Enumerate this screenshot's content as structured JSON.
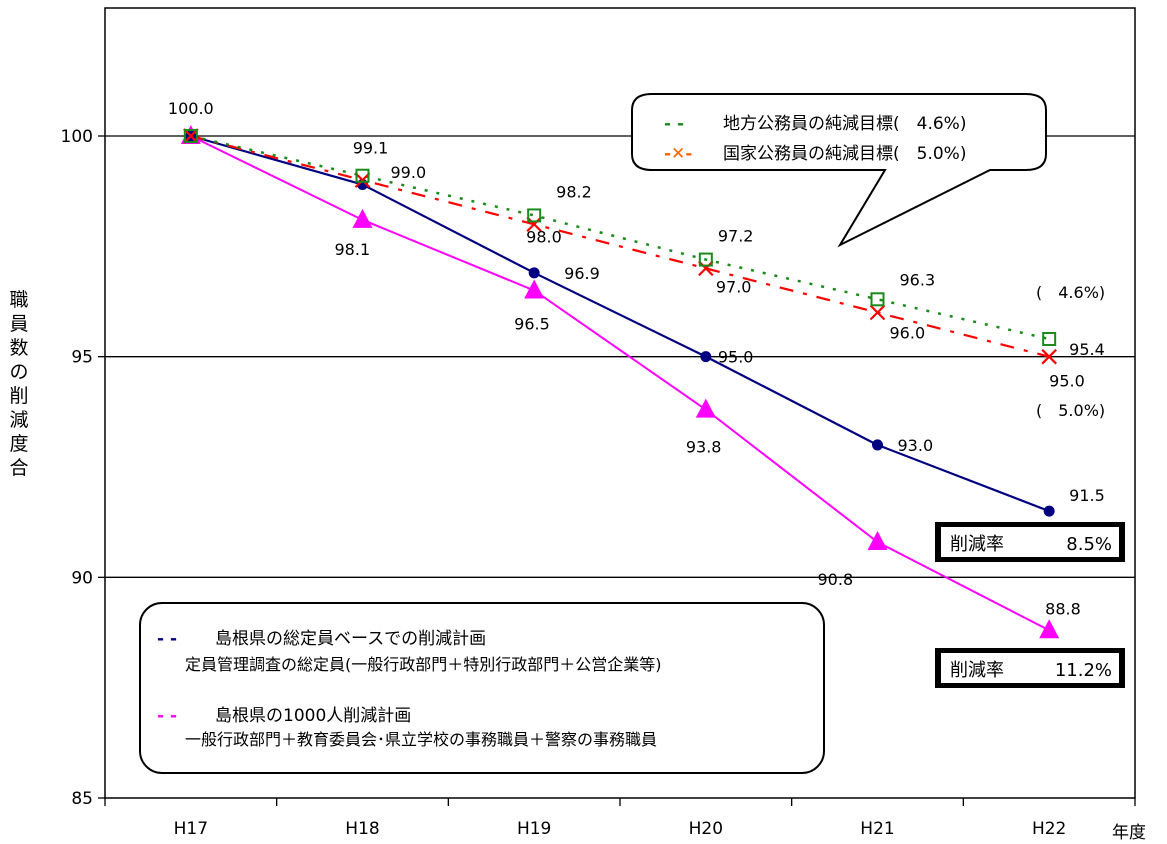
{
  "chart_data": {
    "type": "line",
    "ylabel": "職員数の削減度合",
    "xunit": "年度",
    "categories": [
      "H17",
      "H18",
      "H19",
      "H20",
      "H21",
      "H22"
    ],
    "ylim": [
      85,
      100
    ],
    "yticks": [
      "85",
      "90",
      "95",
      "100"
    ],
    "series": [
      {
        "id": "local",
        "legend": "地方公務員の純減目標(　4.6%)",
        "color": "#1a8a1a",
        "values": [
          100.0,
          99.1,
          98.2,
          97.2,
          96.3,
          95.4
        ],
        "labels": [
          "100.0",
          "99.1",
          "98.2",
          "97.2",
          "96.3",
          "95.4"
        ]
      },
      {
        "id": "national",
        "legend": "国家公務員の純減目標(　5.0%)",
        "color": "#ff0000",
        "values": [
          100.0,
          99.0,
          98.0,
          97.0,
          96.0,
          95.0
        ],
        "labels": [
          "",
          "99.0",
          "98.0",
          "97.0",
          "96.0",
          "95.0"
        ]
      },
      {
        "id": "total",
        "legend": "島根県の総定員ベースでの削減計画",
        "color": "#000080",
        "values": [
          100.0,
          98.9,
          96.9,
          95.0,
          93.0,
          91.5
        ],
        "labels": [
          "",
          "",
          "96.9",
          "95.0",
          "93.0",
          "91.5"
        ]
      },
      {
        "id": "plan1000",
        "legend": "島根県の1000人削減計画",
        "color": "#ff00ff",
        "values": [
          100.0,
          98.1,
          96.5,
          93.8,
          90.8,
          88.8
        ],
        "labels": [
          "",
          "98.1",
          "96.5",
          "93.8",
          "90.8",
          "88.8"
        ]
      }
    ],
    "legend_top": [
      {
        "marker": "- -",
        "marker_color": "#1a8a1a",
        "text": "地方公務員の純減目標(　4.6%)"
      },
      {
        "marker": "-✕-",
        "marker_color": "#ff6600",
        "text": "国家公務員の純減目標(　5.0%)"
      }
    ],
    "legend_bottom": [
      {
        "marker": "- -",
        "marker_color": "#000080",
        "text": "島根県の総定員ベースでの削減計画",
        "sub": "定員管理調査の総定員(一般行政部門＋特別行政部門＋公営企業等)"
      },
      {
        "marker": "- -",
        "marker_color": "#ff00ff",
        "text": "島根県の1000人削減計画",
        "sub": "一般行政部門＋教育委員会･県立学校の事務職員＋警察の事務職員"
      }
    ],
    "annotations": {
      "pct_local": "(　4.6%)",
      "pct_national": "(　5.0%)",
      "rate_total_label": "削減率",
      "rate_total_value": "8.5%",
      "rate_plan_label": "削減率",
      "rate_plan_value": "11.2%"
    }
  }
}
